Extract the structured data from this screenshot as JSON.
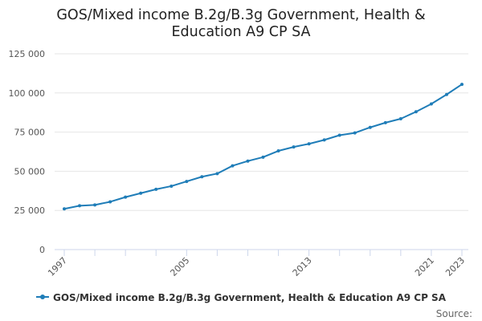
{
  "chart_data": {
    "type": "line",
    "title_lines": [
      "GOS/Mixed income B.2g/B.3g Government, Health &",
      "Education A9 CP SA"
    ],
    "x": [
      1997,
      1998,
      1999,
      2000,
      2001,
      2002,
      2003,
      2004,
      2005,
      2006,
      2007,
      2008,
      2009,
      2010,
      2011,
      2012,
      2013,
      2014,
      2015,
      2016,
      2017,
      2018,
      2019,
      2020,
      2021,
      2022,
      2023
    ],
    "x_tick_labels": [
      "1997",
      "2005",
      "2013",
      "2021",
      "2023"
    ],
    "y_ticks": [
      0,
      25000,
      50000,
      75000,
      100000,
      125000
    ],
    "y_tick_labels": [
      "0",
      "25 000",
      "50 000",
      "75 000",
      "100 000",
      "125 000"
    ],
    "ylim": [
      0,
      125000
    ],
    "series": [
      {
        "name": "GOS/Mixed income B.2g/B.3g Government, Health & Education A9 CP SA",
        "color": "#1f7db8",
        "values": [
          26000,
          28000,
          28500,
          30500,
          33500,
          36000,
          38500,
          40500,
          43500,
          46500,
          48500,
          53500,
          56500,
          59000,
          63000,
          65500,
          67500,
          70000,
          73000,
          74500,
          78000,
          81000,
          83500,
          88000,
          93000,
          99000,
          105500
        ]
      }
    ],
    "legend_position": "bottom",
    "grid": true
  },
  "source_label": "Source:"
}
